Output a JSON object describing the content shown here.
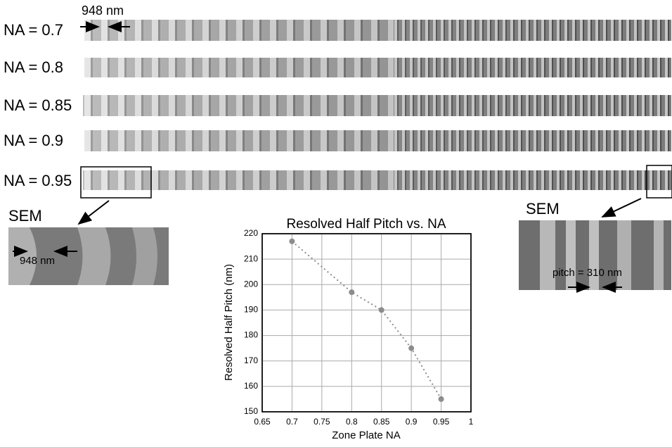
{
  "strips": [
    {
      "label": "NA = 0.7"
    },
    {
      "label": "NA = 0.8"
    },
    {
      "label": "NA = 0.85"
    },
    {
      "label": "NA = 0.9"
    },
    {
      "label": "NA = 0.95"
    }
  ],
  "annotations": {
    "top_width": "948 nm",
    "sem_left": "SEM",
    "sem_left_width": "948 nm",
    "sem_right": "SEM",
    "sem_right_pitch": "pitch = 310 nm"
  },
  "chart_data": {
    "type": "line",
    "title": "Resolved  Half  Pitch  vs.  NA",
    "x_label": "Zone Plate NA",
    "y_label": "Resolved Half Pitch (nm)",
    "x": [
      0.7,
      0.8,
      0.85,
      0.9,
      0.95
    ],
    "values": [
      217,
      197,
      190,
      175,
      155
    ],
    "color": "#8c8c8c",
    "xlim": [
      0.65,
      1
    ],
    "xticks": [
      0.65,
      0.7,
      0.75,
      0.8,
      0.85,
      0.9,
      0.95,
      1
    ],
    "ylim": [
      150,
      220
    ],
    "yticks": [
      150,
      160,
      170,
      180,
      190,
      200,
      210,
      220
    ],
    "grid": true
  }
}
